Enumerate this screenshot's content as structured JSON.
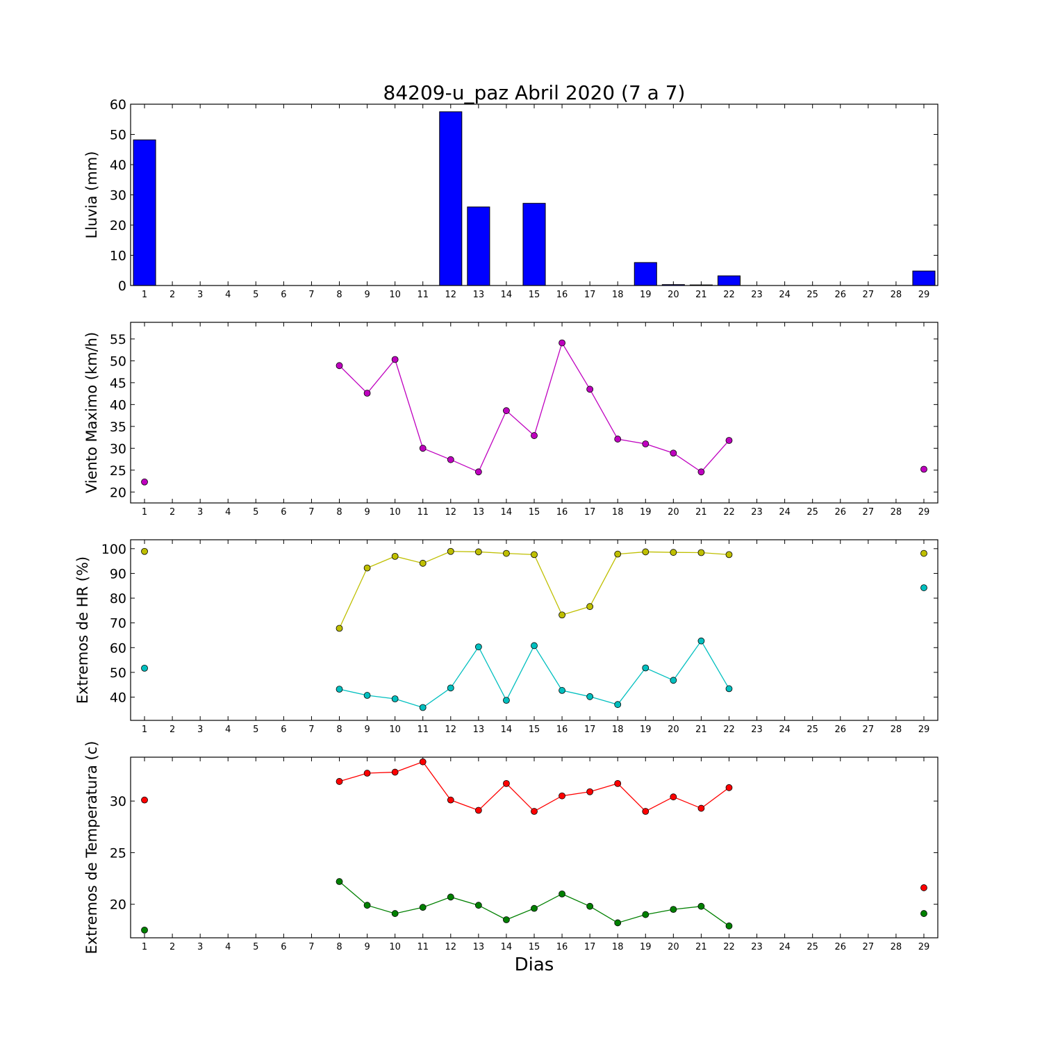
{
  "title": "84209-u_paz Abril 2020  (7 a 7)",
  "xlabel": "Dias",
  "colors": {
    "lluvia": "#0000ff",
    "viento": "#bf00bf",
    "hr_max": "#bfbf00",
    "hr_min": "#00bfbf",
    "temp_max": "#ff0000",
    "temp_min": "#008000"
  },
  "chart_data": [
    {
      "type": "bar",
      "title": "84209-u_paz Abril 2020  (7 a 7)",
      "xlabel": "",
      "ylabel": "Lluvia (mm)",
      "x": [
        1,
        2,
        3,
        4,
        5,
        6,
        7,
        8,
        9,
        10,
        11,
        12,
        13,
        14,
        15,
        16,
        17,
        18,
        19,
        20,
        21,
        22,
        23,
        24,
        25,
        26,
        27,
        28,
        29
      ],
      "xlim": [
        0.5,
        29.5
      ],
      "ylim": [
        0,
        60
      ],
      "yticks": [
        0,
        10,
        20,
        30,
        40,
        50,
        60
      ],
      "series": [
        {
          "values": [
            48.2,
            0,
            0,
            0,
            0,
            0,
            0,
            0,
            0,
            0,
            0,
            57.5,
            26,
            0,
            27.2,
            0,
            0,
            0,
            7.6,
            0.3,
            0.2,
            3.2,
            0,
            0,
            0,
            0,
            0,
            0,
            4.8
          ]
        }
      ]
    },
    {
      "type": "line",
      "ylabel": "Viento Maximo (km/h)",
      "x": [
        1,
        2,
        3,
        4,
        5,
        6,
        7,
        8,
        9,
        10,
        11,
        12,
        13,
        14,
        15,
        16,
        17,
        18,
        19,
        20,
        21,
        22,
        23,
        24,
        25,
        26,
        27,
        28,
        29
      ],
      "xlim": [
        0.5,
        29.5
      ],
      "ylim": [
        17.5,
        58.8
      ],
      "yticks": [
        20,
        25,
        30,
        35,
        40,
        45,
        50,
        55
      ],
      "series": [
        {
          "values": [
            22.3,
            null,
            null,
            null,
            null,
            null,
            null,
            48.9,
            42.6,
            50.3,
            30.0,
            27.4,
            24.6,
            38.6,
            32.9,
            54.1,
            43.5,
            32.1,
            31.0,
            28.9,
            24.6,
            31.8,
            null,
            null,
            null,
            null,
            null,
            null,
            25.2
          ]
        }
      ]
    },
    {
      "type": "line",
      "ylabel": "Extremos de HR (%)",
      "x": [
        1,
        2,
        3,
        4,
        5,
        6,
        7,
        8,
        9,
        10,
        11,
        12,
        13,
        14,
        15,
        16,
        17,
        18,
        19,
        20,
        21,
        22,
        23,
        24,
        25,
        26,
        27,
        28,
        29
      ],
      "xlim": [
        0.5,
        29.5
      ],
      "ylim": [
        30.6,
        103.6
      ],
      "yticks": [
        40,
        50,
        60,
        70,
        80,
        90,
        100
      ],
      "series": [
        {
          "values": [
            98.9,
            null,
            null,
            null,
            null,
            null,
            null,
            67.8,
            92.2,
            96.9,
            94.1,
            98.9,
            98.7,
            98.1,
            97.6,
            73.2,
            76.6,
            97.8,
            98.7,
            98.5,
            98.4,
            97.6,
            null,
            null,
            null,
            null,
            null,
            null,
            98.1
          ]
        },
        {
          "values": [
            51.7,
            null,
            null,
            null,
            null,
            null,
            null,
            43.2,
            40.7,
            39.3,
            35.8,
            43.7,
            60.3,
            38.7,
            60.8,
            42.7,
            40.2,
            37.0,
            51.8,
            46.8,
            62.7,
            43.4,
            null,
            null,
            null,
            null,
            null,
            null,
            84.2
          ]
        }
      ]
    },
    {
      "type": "line",
      "ylabel": "Extremos de Temperatura (c)",
      "xlabel": "Dias",
      "x": [
        1,
        2,
        3,
        4,
        5,
        6,
        7,
        8,
        9,
        10,
        11,
        12,
        13,
        14,
        15,
        16,
        17,
        18,
        19,
        20,
        21,
        22,
        23,
        24,
        25,
        26,
        27,
        28,
        29
      ],
      "xlim": [
        0.5,
        29.5
      ],
      "ylim": [
        16.75,
        34.25
      ],
      "yticks": [
        20,
        25,
        30
      ],
      "series": [
        {
          "values": [
            30.1,
            null,
            null,
            null,
            null,
            null,
            null,
            31.9,
            32.7,
            32.8,
            33.8,
            30.1,
            29.1,
            31.7,
            29.0,
            30.5,
            30.9,
            31.7,
            29.0,
            30.4,
            29.3,
            31.3,
            null,
            null,
            null,
            null,
            null,
            null,
            21.6
          ]
        },
        {
          "values": [
            17.5,
            null,
            null,
            null,
            null,
            null,
            null,
            22.2,
            19.9,
            19.1,
            19.7,
            20.7,
            19.9,
            18.5,
            19.6,
            21.0,
            19.8,
            18.2,
            19.0,
            19.5,
            19.8,
            17.9,
            null,
            null,
            null,
            null,
            null,
            null,
            19.1
          ]
        }
      ]
    }
  ]
}
